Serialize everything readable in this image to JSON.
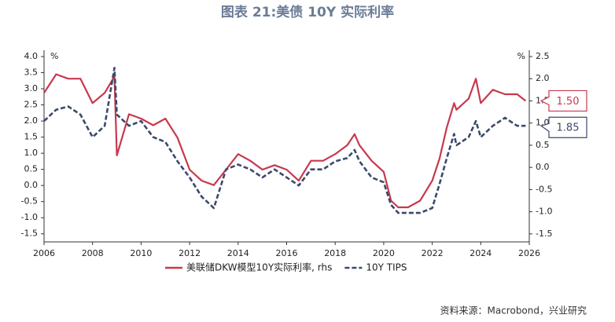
{
  "chart_data": {
    "type": "line",
    "title": "图表 21:美债 10Y 实际利率",
    "y_unit": "%",
    "y2_unit": "%",
    "source": "资料来源：Macrobond，兴业研究",
    "x": [
      2006.0,
      2006.5,
      2007.0,
      2007.5,
      2008.0,
      2008.5,
      2008.9,
      2009.0,
      2009.5,
      2010.0,
      2010.5,
      2011.0,
      2011.5,
      2012.0,
      2012.5,
      2013.0,
      2013.5,
      2014.0,
      2014.5,
      2015.0,
      2015.5,
      2016.0,
      2016.5,
      2017.0,
      2017.5,
      2018.0,
      2018.5,
      2018.8,
      2019.0,
      2019.5,
      2020.0,
      2020.3,
      2020.6,
      2021.0,
      2021.5,
      2022.0,
      2022.3,
      2022.6,
      2022.9,
      2023.0,
      2023.5,
      2023.8,
      2024.0,
      2024.5,
      2025.0,
      2025.5,
      2025.85
    ],
    "series": [
      {
        "name": "美联储DKW模型10Y实际利率, rhs",
        "color": "#c8384d",
        "dash": false,
        "axis": "y2",
        "end_label": "1.50",
        "values": [
          1.68,
          2.1,
          2.0,
          2.0,
          1.45,
          1.68,
          2.05,
          0.27,
          1.2,
          1.1,
          0.95,
          1.1,
          0.67,
          -0.05,
          -0.3,
          -0.4,
          -0.05,
          0.3,
          0.15,
          -0.05,
          0.05,
          -0.05,
          -0.3,
          0.15,
          0.15,
          0.3,
          0.5,
          0.75,
          0.5,
          0.15,
          -0.1,
          -0.75,
          -0.9,
          -0.9,
          -0.75,
          -0.3,
          0.2,
          0.9,
          1.45,
          1.3,
          1.55,
          2.0,
          1.45,
          1.75,
          1.65,
          1.65,
          1.5
        ]
      },
      {
        "name": "10Y TIPS",
        "color": "#3b4a6b",
        "dash": true,
        "axis": "y",
        "end_label": "1.85",
        "values": [
          2.0,
          2.35,
          2.45,
          2.2,
          1.5,
          1.85,
          3.65,
          2.2,
          1.85,
          2.0,
          1.5,
          1.35,
          0.75,
          0.25,
          -0.35,
          -0.7,
          0.5,
          0.65,
          0.5,
          0.25,
          0.5,
          0.25,
          0.0,
          0.5,
          0.5,
          0.75,
          0.85,
          1.1,
          0.75,
          0.25,
          0.1,
          -0.6,
          -0.85,
          -0.85,
          -0.85,
          -0.7,
          0.05,
          0.85,
          1.6,
          1.25,
          1.5,
          2.0,
          1.5,
          1.85,
          2.1,
          1.85,
          1.85
        ]
      }
    ],
    "xlim": [
      2006,
      2026
    ],
    "xticks": [
      2006,
      2008,
      2010,
      2012,
      2014,
      2016,
      2018,
      2020,
      2022,
      2024,
      2026
    ],
    "ylim": [
      -1.75,
      4.0
    ],
    "yticks": [
      {
        "value": 4,
        "label": "4.0"
      },
      3.5,
      {
        "value": 3,
        "label": "3.0"
      },
      2.5,
      {
        "value": 2,
        "label": "2.0"
      },
      1.5,
      {
        "value": 1,
        "label": "1.0"
      },
      0.5,
      {
        "value": 0,
        "label": "0.0"
      },
      -0.5,
      {
        "value": -1,
        "label": "-1.0"
      },
      -1.5
    ],
    "y2lim": [
      -1.68,
      2.5
    ],
    "y2ticks": [
      2.5,
      {
        "value": 2,
        "label": "2.0"
      },
      1.5,
      {
        "value": 1,
        "label": "1.0"
      },
      0.5,
      {
        "value": 0,
        "label": "0.0"
      },
      -0.5,
      {
        "value": -1,
        "label": "-1.0"
      },
      -1.5
    ],
    "legend": "bottom",
    "grid": false
  }
}
